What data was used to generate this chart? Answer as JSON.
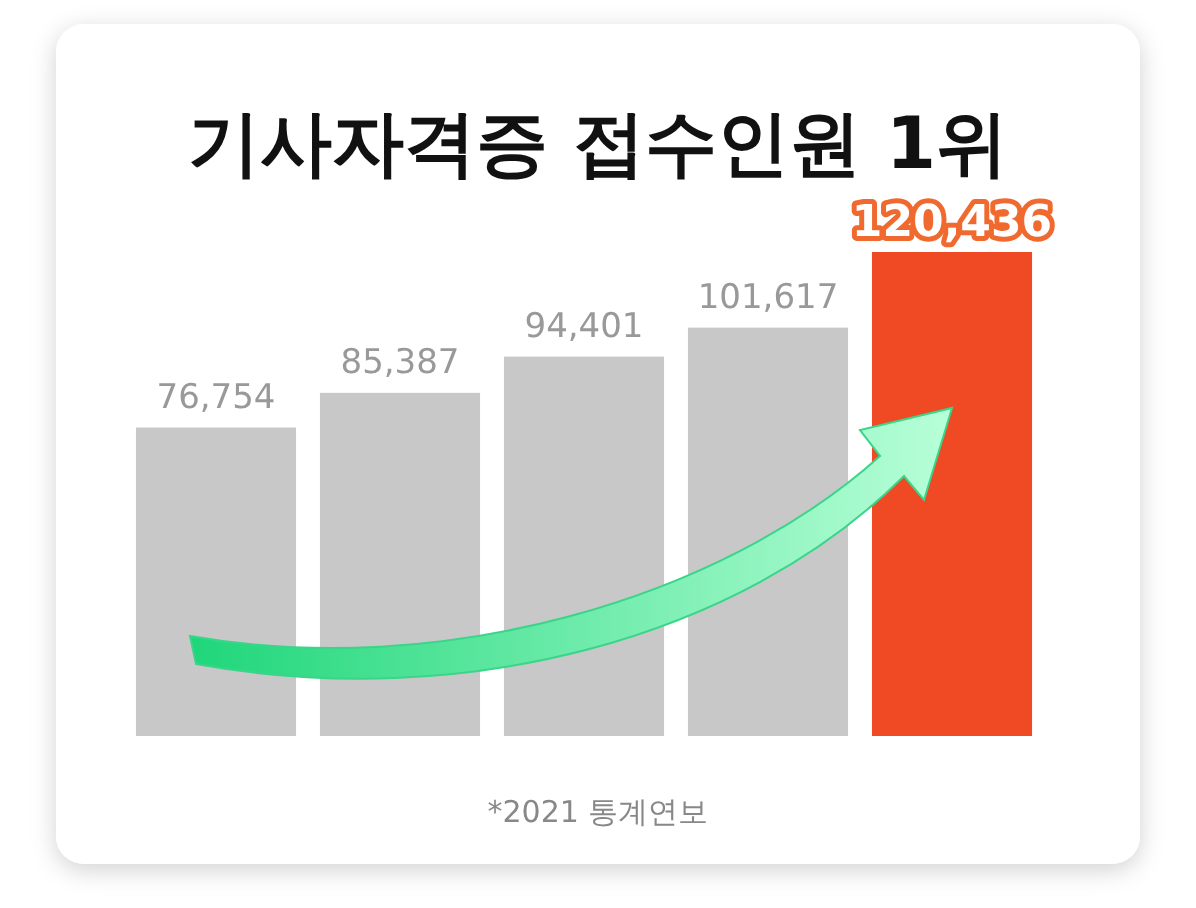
{
  "chart_data": {
    "type": "bar",
    "title": "기사자격증 접수인원 1위",
    "categories": [
      null,
      null,
      null,
      null,
      null
    ],
    "values": [
      76754,
      85387,
      94401,
      101617,
      120436
    ],
    "colors": [
      "#c8c8c8",
      "#c8c8c8",
      "#c8c8c8",
      "#c8c8c8",
      "#f04a24"
    ],
    "value_labels": [
      "76,754",
      "85,387",
      "94,401",
      "101,617",
      "120,436"
    ],
    "annotations": [
      "*2021 통계연보"
    ]
  }
}
